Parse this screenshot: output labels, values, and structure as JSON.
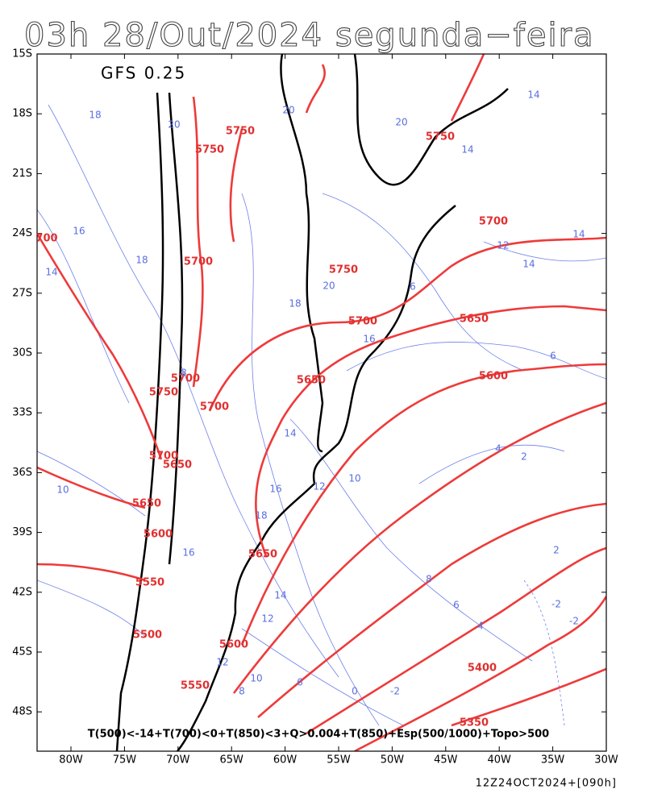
{
  "title": "03h 28/Out/2024 segunda−feira",
  "model": "GFS 0.25",
  "lat_labels": [
    "15S",
    "18S",
    "21S",
    "24S",
    "27S",
    "30S",
    "33S",
    "36S",
    "39S",
    "42S",
    "45S",
    "48S"
  ],
  "lon_labels": [
    "80W",
    "75W",
    "70W",
    "65W",
    "60W",
    "55W",
    "50W",
    "45W",
    "40W",
    "35W",
    "30W"
  ],
  "red_labels": [
    "5750",
    "5750",
    "5750",
    "5700",
    "700",
    "5700",
    "5750",
    "5700",
    "5650",
    "5600",
    "5650",
    "5700",
    "5750",
    "5700",
    "5700",
    "5650",
    "5650",
    "5600",
    "5650",
    "5550",
    "5500",
    "5600",
    "5400",
    "5550",
    "5350"
  ],
  "blue_labels": [
    "14",
    "18",
    "20",
    "20",
    "20",
    "14",
    "16",
    "18",
    "14",
    "12",
    "14",
    "14",
    "20",
    "18",
    "6",
    "16",
    "8",
    "6",
    "14",
    "10",
    "12",
    "16",
    "10",
    "4",
    "2",
    "2",
    "16",
    "18",
    "8",
    "6",
    "4",
    "12",
    "14",
    "12",
    "10",
    "8",
    "6",
    "0",
    "-2",
    "-2",
    "-2"
  ],
  "criteria": "T(500)<-14+T(700)<0+T(850)<3+Q>0.004+T(850)+Esp(500/1000)+Topo>500",
  "footer": "12Z24OCT2024+[090h]"
}
